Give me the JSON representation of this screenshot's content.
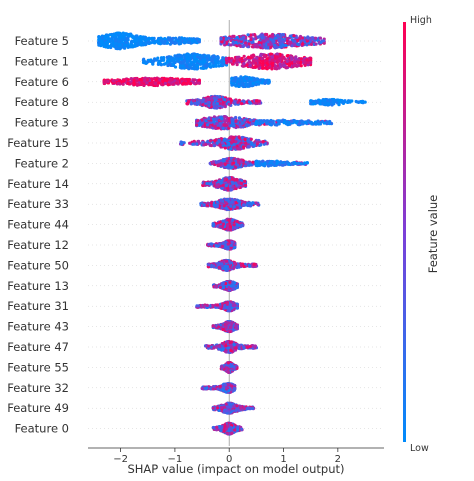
{
  "chart_data": {
    "type": "scatter",
    "subtype": "shap-beeswarm",
    "xlabel": "SHAP value (impact on model output)",
    "xlim": [
      -2.6,
      2.85
    ],
    "xticks": [
      -2,
      -1,
      0,
      1,
      2
    ],
    "colorbar": {
      "label": "Feature value",
      "high": "High",
      "low": "Low"
    },
    "colors": {
      "low": "#008bfb",
      "mid": "#7c3fd8",
      "high": "#ff0052"
    },
    "features": [
      {
        "name": "Feature 5",
        "groups": [
          {
            "min": -2.4,
            "max": -1.3,
            "center": -2.0,
            "spread": 0.26,
            "height": 0.95,
            "cv": 0.0,
            "cvr": 0.1,
            "w": 3
          },
          {
            "min": -1.3,
            "max": -0.55,
            "center": -1.0,
            "spread": 0.3,
            "height": 0.4,
            "cv": 0.05,
            "cvr": 0.1,
            "w": 1
          },
          {
            "min": -0.15,
            "max": 1.75,
            "center": 0.7,
            "spread": 0.5,
            "height": 0.85,
            "cv": 0.55,
            "cvr": 0.45,
            "w": 4
          }
        ]
      },
      {
        "name": "Feature 1",
        "groups": [
          {
            "min": -1.6,
            "max": -0.05,
            "center": -0.65,
            "spread": 0.35,
            "height": 0.9,
            "cv": 0.05,
            "cvr": 0.1,
            "w": 3
          },
          {
            "min": -0.05,
            "max": 1.5,
            "center": 0.75,
            "spread": 0.4,
            "height": 0.9,
            "cv": 0.85,
            "cvr": 0.25,
            "w": 3
          }
        ]
      },
      {
        "name": "Feature 6",
        "groups": [
          {
            "min": -2.3,
            "max": -0.55,
            "center": -1.4,
            "spread": 0.5,
            "height": 0.45,
            "cv": 0.9,
            "cvr": 0.2,
            "w": 3
          },
          {
            "min": 0.05,
            "max": 0.75,
            "center": 0.25,
            "spread": 0.18,
            "height": 0.6,
            "cv": 0.05,
            "cvr": 0.1,
            "w": 2
          }
        ]
      },
      {
        "name": "Feature 8",
        "groups": [
          {
            "min": -0.8,
            "max": 0.65,
            "center": -0.25,
            "spread": 0.18,
            "height": 0.7,
            "cv": 0.6,
            "cvr": 0.5,
            "w": 3
          },
          {
            "min": 1.5,
            "max": 2.6,
            "center": 1.85,
            "spread": 0.22,
            "height": 0.35,
            "cv": 0.05,
            "cvr": 0.1,
            "w": 1
          }
        ]
      },
      {
        "name": "Feature 3",
        "groups": [
          {
            "min": -0.6,
            "max": 1.9,
            "center": -0.1,
            "spread": 0.3,
            "height": 0.75,
            "cv": 0.45,
            "cvr": 0.5,
            "w": 3
          },
          {
            "min": 0.5,
            "max": 1.85,
            "center": 1.0,
            "spread": 0.45,
            "height": 0.3,
            "cv": 0.1,
            "cvr": 0.15,
            "w": 1
          }
        ]
      },
      {
        "name": "Feature 15",
        "groups": [
          {
            "min": -0.9,
            "max": 0.7,
            "center": 0.1,
            "spread": 0.22,
            "height": 0.75,
            "cv": 0.55,
            "cvr": 0.5,
            "w": 3
          }
        ]
      },
      {
        "name": "Feature 2",
        "groups": [
          {
            "min": -0.35,
            "max": 1.45,
            "center": 0.05,
            "spread": 0.15,
            "height": 0.6,
            "cv": 0.5,
            "cvr": 0.5,
            "w": 3
          },
          {
            "min": 0.5,
            "max": 1.45,
            "center": 0.7,
            "spread": 0.25,
            "height": 0.3,
            "cv": 0.1,
            "cvr": 0.15,
            "w": 1
          }
        ]
      },
      {
        "name": "Feature 14",
        "groups": [
          {
            "min": -0.5,
            "max": 0.3,
            "center": 0.0,
            "spread": 0.15,
            "height": 0.75,
            "cv": 0.45,
            "cvr": 0.5,
            "w": 3
          }
        ]
      },
      {
        "name": "Feature 33",
        "groups": [
          {
            "min": -0.55,
            "max": 0.55,
            "center": 0.0,
            "spread": 0.15,
            "height": 0.65,
            "cv": 0.55,
            "cvr": 0.5,
            "w": 3
          }
        ]
      },
      {
        "name": "Feature 44",
        "groups": [
          {
            "min": -0.3,
            "max": 0.25,
            "center": 0.0,
            "spread": 0.1,
            "height": 0.65,
            "cv": 0.5,
            "cvr": 0.5,
            "w": 3
          }
        ]
      },
      {
        "name": "Feature 12",
        "groups": [
          {
            "min": -0.4,
            "max": 0.1,
            "center": 0.0,
            "spread": 0.08,
            "height": 0.5,
            "cv": 0.5,
            "cvr": 0.5,
            "w": 3
          }
        ]
      },
      {
        "name": "Feature 50",
        "groups": [
          {
            "min": -0.4,
            "max": 0.55,
            "center": -0.05,
            "spread": 0.1,
            "height": 0.6,
            "cv": 0.5,
            "cvr": 0.5,
            "w": 3
          }
        ]
      },
      {
        "name": "Feature 13",
        "groups": [
          {
            "min": -0.3,
            "max": 0.15,
            "center": 0.0,
            "spread": 0.08,
            "height": 0.55,
            "cv": 0.45,
            "cvr": 0.5,
            "w": 3
          }
        ]
      },
      {
        "name": "Feature 31",
        "groups": [
          {
            "min": -0.6,
            "max": 0.15,
            "center": 0.0,
            "spread": 0.08,
            "height": 0.55,
            "cv": 0.55,
            "cvr": 0.5,
            "w": 3
          }
        ]
      },
      {
        "name": "Feature 43",
        "groups": [
          {
            "min": -0.3,
            "max": 0.15,
            "center": 0.0,
            "spread": 0.08,
            "height": 0.6,
            "cv": 0.5,
            "cvr": 0.5,
            "w": 3
          }
        ]
      },
      {
        "name": "Feature 47",
        "groups": [
          {
            "min": -0.45,
            "max": 0.55,
            "center": 0.0,
            "spread": 0.1,
            "height": 0.65,
            "cv": 0.55,
            "cvr": 0.5,
            "w": 3
          }
        ]
      },
      {
        "name": "Feature 55",
        "groups": [
          {
            "min": -0.15,
            "max": 0.15,
            "center": 0.0,
            "spread": 0.05,
            "height": 0.6,
            "cv": 0.4,
            "cvr": 0.5,
            "w": 3
          }
        ]
      },
      {
        "name": "Feature 32",
        "groups": [
          {
            "min": -0.5,
            "max": 0.1,
            "center": -0.02,
            "spread": 0.08,
            "height": 0.55,
            "cv": 0.5,
            "cvr": 0.5,
            "w": 3
          }
        ]
      },
      {
        "name": "Feature 49",
        "groups": [
          {
            "min": -0.3,
            "max": 0.45,
            "center": 0.0,
            "spread": 0.1,
            "height": 0.6,
            "cv": 0.55,
            "cvr": 0.5,
            "w": 3
          }
        ]
      },
      {
        "name": "Feature 0",
        "groups": [
          {
            "min": -0.3,
            "max": 0.25,
            "center": 0.0,
            "spread": 0.08,
            "height": 0.65,
            "cv": 0.5,
            "cvr": 0.5,
            "w": 3
          }
        ]
      }
    ]
  }
}
